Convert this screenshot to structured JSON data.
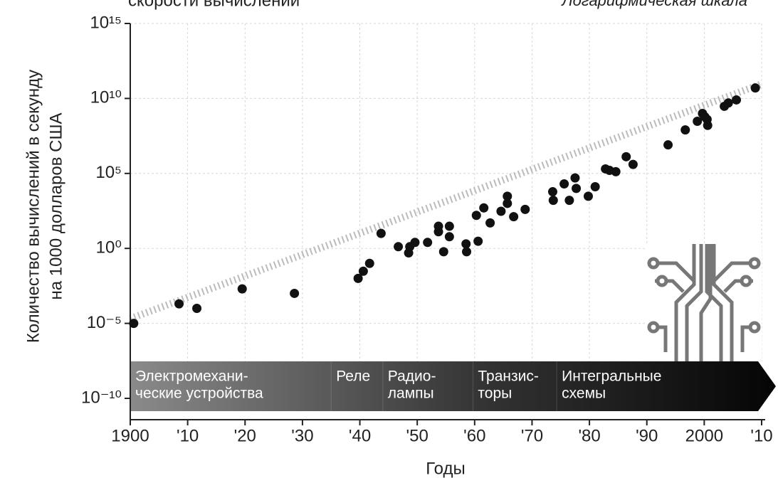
{
  "chart_data": {
    "type": "scatter",
    "title": "скорости вычислений",
    "subtitle": "Логарифмическая шкала",
    "ylabel": [
      "Количество вычислений в секунду",
      "на 1000 долларов США"
    ],
    "xlabel": "Годы",
    "log_y": true,
    "grid": true,
    "color": "#111111",
    "x": [
      1900.6,
      1908.5,
      1911.6,
      1919.5,
      1928.6,
      1939.7,
      1940.6,
      1941.7,
      1943.7,
      1946.7,
      1948.5,
      1948.7,
      1949.6,
      1951.8,
      1953.7,
      1953.7,
      1954.6,
      1955.6,
      1955.6,
      1958.5,
      1958.6,
      1960.6,
      1960.3,
      1961.6,
      1962.7,
      1964.6,
      1965.7,
      1965.7,
      1966.8,
      1968.8,
      1973.6,
      1973.7,
      1975.6,
      1976.5,
      1977.5,
      1977.7,
      1979.8,
      1981,
      1982.8,
      1983.5,
      1984.6,
      1986.4,
      1987.6,
      1993.7,
      1996.7,
      1998.8,
      1999.7,
      2000.1,
      2000.5,
      2000.6,
      2003.5,
      2004.2,
      2005.6,
      2008.9
    ],
    "values": [
      1e-05,
      0.0002,
      0.0001,
      0.002,
      0.001,
      0.01,
      0.03,
      0.1,
      10,
      1.3,
      0.5,
      1.3,
      2.5,
      2.5,
      30,
      13,
      0.6,
      30,
      6,
      2,
      0.6,
      3,
      160,
      500,
      50,
      300,
      3000,
      1000,
      130,
      400,
      6000,
      1600,
      20000,
      1600,
      50000,
      10000,
      3000,
      13000,
      200000,
      160000,
      130000,
      1300000,
      400000,
      8000000,
      80000000,
      300000000,
      1000000000,
      600000000,
      400000000,
      160000000,
      3000000000,
      5000000000,
      8000000000,
      50000000000
    ],
    "xlim": [
      1900,
      2010
    ],
    "xticks": [
      1900,
      {
        "value": 1910,
        "label": "'10"
      },
      {
        "value": 1920,
        "label": "'20"
      },
      {
        "value": 1930,
        "label": "'30"
      },
      {
        "value": 1940,
        "label": "'40"
      },
      {
        "value": 1950,
        "label": "'50"
      },
      {
        "value": 1960,
        "label": "'60"
      },
      {
        "value": 1970,
        "label": "'70"
      },
      {
        "value": 1980,
        "label": "'80"
      },
      {
        "value": 1990,
        "label": "'90"
      },
      2000,
      {
        "value": 2010,
        "label": "'10"
      }
    ],
    "ylim": [
      1e-10,
      1000000000000000.0
    ],
    "yticks": [
      {
        "value": 1e-10,
        "label": "10⁻¹⁰"
      },
      {
        "value": 1e-05,
        "label": "10⁻⁵"
      },
      {
        "value": 1,
        "label": "10⁰"
      },
      {
        "value": 100000,
        "label": "10⁵"
      },
      {
        "value": 10000000000,
        "label": "10¹⁰"
      },
      {
        "value": 1000000000000000.0,
        "label": "10¹⁵"
      }
    ],
    "eras": [
      {
        "label": [
          "Электромехани-",
          "ческие устройства"
        ],
        "start": 1900
      },
      {
        "label": [
          "Реле"
        ],
        "start": 1935
      },
      {
        "label": [
          "Радио-",
          "лампы"
        ],
        "start": 1944
      },
      {
        "label": [
          "Транзис-",
          "торы"
        ],
        "start": 1959.7
      },
      {
        "label": [
          "Интегральные",
          "схемы"
        ],
        "start": 1974.3
      }
    ]
  }
}
